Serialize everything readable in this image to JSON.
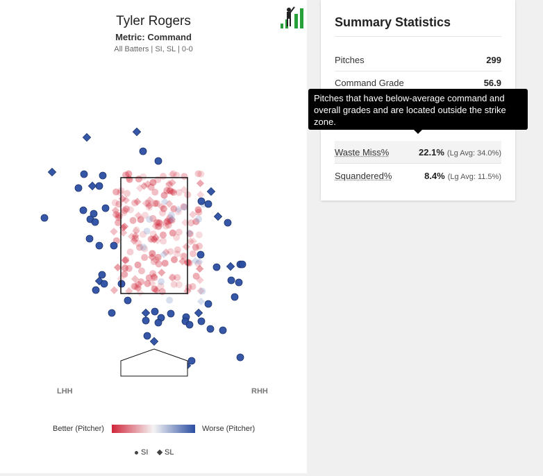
{
  "chart": {
    "player_name": "Tyler Rogers",
    "metric": "Metric: Command",
    "filters": "All Batters | SI, SL | 0-0",
    "lhh_label": "LHH",
    "rhh_label": "RHH",
    "legend_better": "Better (Pitcher)",
    "legend_worse": "Worse (Pitcher)",
    "pitch_types": [
      {
        "code": "SI",
        "marker": "circle"
      },
      {
        "code": "SL",
        "marker": "diamond"
      }
    ],
    "colors": {
      "better": "#d0263a",
      "neutral": "#f4f4f4",
      "worse": "#2b4ea2",
      "logo_green": "#27a03a"
    }
  },
  "summary": {
    "title": "Summary Statistics",
    "rows": [
      {
        "label": "Pitches",
        "value": "299"
      },
      {
        "label": "Command Grade",
        "value": "56.9"
      },
      {
        "label": "Waste Miss%",
        "value": "22.1%",
        "lg": "(Lg Avg: 34.0%)"
      },
      {
        "label": "Squandered%",
        "value": "8.4%",
        "lg": "(Lg Avg: 11.5%)"
      }
    ]
  },
  "tooltip": {
    "text": "Pitches that have below-average command and overall grades and are located outside the strike zone."
  }
}
